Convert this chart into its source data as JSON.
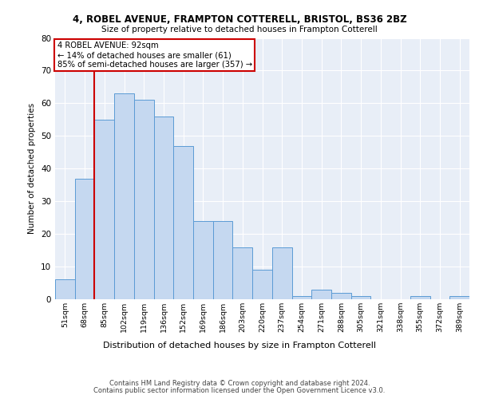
{
  "title1": "4, ROBEL AVENUE, FRAMPTON COTTERELL, BRISTOL, BS36 2BZ",
  "title2": "Size of property relative to detached houses in Frampton Cotterell",
  "xlabel": "Distribution of detached houses by size in Frampton Cotterell",
  "ylabel": "Number of detached properties",
  "categories": [
    "51sqm",
    "68sqm",
    "85sqm",
    "102sqm",
    "119sqm",
    "136sqm",
    "152sqm",
    "169sqm",
    "186sqm",
    "203sqm",
    "220sqm",
    "237sqm",
    "254sqm",
    "271sqm",
    "288sqm",
    "305sqm",
    "321sqm",
    "338sqm",
    "355sqm",
    "372sqm",
    "389sqm"
  ],
  "values": [
    6,
    37,
    55,
    63,
    61,
    56,
    47,
    24,
    24,
    16,
    9,
    16,
    1,
    3,
    2,
    1,
    0,
    0,
    1,
    0,
    1
  ],
  "bar_color": "#c5d8f0",
  "bar_edge_color": "#5b9bd5",
  "annotation_text_line1": "4 ROBEL AVENUE: 92sqm",
  "annotation_text_line2": "← 14% of detached houses are smaller (61)",
  "annotation_text_line3": "85% of semi-detached houses are larger (357) →",
  "annotation_box_color": "#ffffff",
  "annotation_box_edge_color": "#cc0000",
  "vline_color": "#cc0000",
  "vline_x": 1.5,
  "ylim": [
    0,
    80
  ],
  "yticks": [
    0,
    10,
    20,
    30,
    40,
    50,
    60,
    70,
    80
  ],
  "background_color": "#e8eef7",
  "footer1": "Contains HM Land Registry data © Crown copyright and database right 2024.",
  "footer2": "Contains public sector information licensed under the Open Government Licence v3.0."
}
